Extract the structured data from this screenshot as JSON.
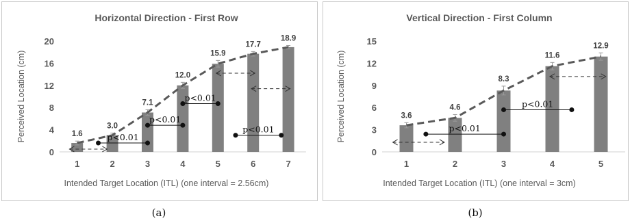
{
  "captions": [
    "(a)",
    "(b)"
  ],
  "chart_data": [
    {
      "type": "bar",
      "title": "Horizontal Direction - First Row",
      "xlabel": "Intended Target Location (ITL) (one interval = 2.56cm)",
      "ylabel": "Perceived Location (cm)",
      "categories": [
        "1",
        "2",
        "3",
        "4",
        "5",
        "6",
        "7"
      ],
      "values": [
        1.6,
        3.0,
        7.1,
        12.0,
        15.9,
        17.7,
        18.9
      ],
      "data_labels": [
        "1.6",
        "3.0",
        "7.1",
        "12.0",
        "15.9",
        "17.7",
        "18.9"
      ],
      "error": [
        0.35,
        0.4,
        0.5,
        0.55,
        0.6,
        0.4,
        0.3
      ],
      "ylim": [
        0,
        20
      ],
      "yticks": [
        0,
        4,
        8,
        12,
        16,
        20
      ],
      "trend_line": "dashed",
      "significance": [
        {
          "label": "p<0.01",
          "x1": 1.6,
          "x2": 3.0,
          "y": 1.6
        },
        {
          "label": "p<0.01",
          "x1": 3.0,
          "x2": 4.0,
          "y": 4.8
        },
        {
          "label": "p<0.01",
          "x1": 4.0,
          "x2": 5.0,
          "y": 8.7
        },
        {
          "label": "p<0.01",
          "x1": 5.5,
          "x2": 6.8,
          "y": 3.0
        }
      ],
      "arrows": [
        {
          "x1": 0.78,
          "x2": 1.85,
          "y": 0.5
        },
        {
          "x1": 4.95,
          "x2": 6.05,
          "y": 14.2
        },
        {
          "x1": 5.95,
          "x2": 7.05,
          "y": 11.4
        }
      ]
    },
    {
      "type": "bar",
      "title": "Vertical Direction - First Column",
      "xlabel": "Intended Target Location (ITL)  (one interval = 3cm)",
      "ylabel": "Perceived Location (cm)",
      "categories": [
        "1",
        "2",
        "3",
        "4",
        "5"
      ],
      "values": [
        3.6,
        4.6,
        8.3,
        11.6,
        12.9
      ],
      "data_labels": [
        "3.6",
        "4.6",
        "8.3",
        "11.6",
        "12.9"
      ],
      "error": [
        0.35,
        0.45,
        0.6,
        0.5,
        0.5
      ],
      "ylim": [
        0,
        15
      ],
      "yticks": [
        0,
        3,
        6,
        9,
        12,
        15
      ],
      "trend_line": "dashed",
      "significance": [
        {
          "label": "p<0.01",
          "x1": 1.4,
          "x2": 3.0,
          "y": 2.4
        },
        {
          "label": "p<0.01",
          "x1": 3.0,
          "x2": 4.4,
          "y": 5.7
        }
      ],
      "arrows": [
        {
          "x1": 0.72,
          "x2": 1.78,
          "y": 1.3
        },
        {
          "x1": 3.95,
          "x2": 5.1,
          "y": 10.2
        }
      ]
    }
  ]
}
